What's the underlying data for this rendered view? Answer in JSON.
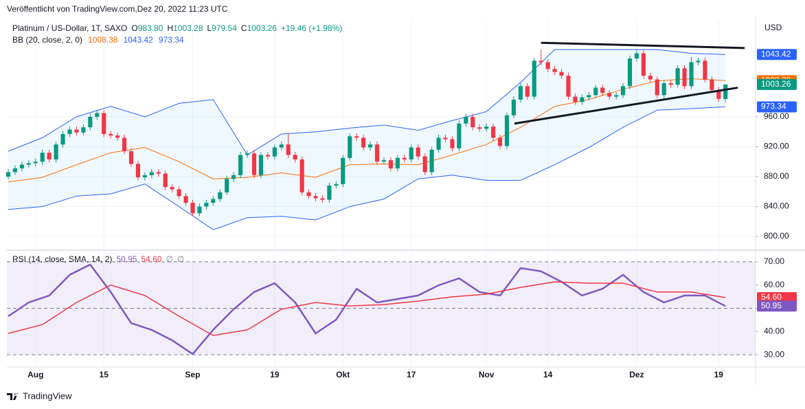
{
  "header": "Veröffentlicht von TradingView.com,Dez 20, 2022 11:23 UTC",
  "footer": "TradingView",
  "chart_data": [
    {
      "type": "candlestick",
      "title": "Platinum / US-Dollar, 1T, SAXO",
      "legend_fields": [
        {
          "label": "O",
          "value": "983.80"
        },
        {
          "label": "H",
          "value": "1003.28"
        },
        {
          "label": "L",
          "value": "979.54"
        },
        {
          "label": "C",
          "value": "1003.26"
        }
      ],
      "change": "+19.46 (+1.98%)",
      "unit": "USD",
      "up_color": "#089981",
      "down_color": "#f23645",
      "xlim": [
        -0.2,
        109.4
      ],
      "xticks": [
        {
          "value": 4,
          "label": "Aug"
        },
        {
          "value": 14,
          "label": "15"
        },
        {
          "value": 27,
          "label": "Sep"
        },
        {
          "value": 39,
          "label": "19"
        },
        {
          "value": 49,
          "label": "Okt"
        },
        {
          "value": 59,
          "label": "17"
        },
        {
          "value": 70,
          "label": "Nov"
        },
        {
          "value": 79,
          "label": "14"
        },
        {
          "value": 92,
          "label": "Dez"
        },
        {
          "value": 104,
          "label": "19"
        }
      ],
      "ylim": [
        783.4,
        1088.7
      ],
      "yticks": [
        {
          "value": 800,
          "label": "800.00"
        },
        {
          "value": 840,
          "label": "840.00"
        },
        {
          "value": 880,
          "label": "880.00"
        },
        {
          "value": 920,
          "label": "920.00"
        },
        {
          "value": 960,
          "label": "960.00"
        }
      ],
      "grid": true,
      "candles": [
        [
          880,
          890,
          876,
          886
        ],
        [
          886,
          895,
          882,
          891
        ],
        [
          891,
          900,
          887,
          896
        ],
        [
          896,
          902,
          892,
          898
        ],
        [
          898,
          904,
          894,
          900
        ],
        [
          900,
          916,
          896,
          912
        ],
        [
          912,
          916,
          899,
          903
        ],
        [
          903,
          927,
          899,
          923
        ],
        [
          923,
          941,
          919,
          937
        ],
        [
          937,
          947,
          933,
          943
        ],
        [
          943,
          947,
          935,
          939
        ],
        [
          939,
          950,
          935,
          946
        ],
        [
          946,
          964,
          942,
          960
        ],
        [
          960,
          969,
          956,
          965
        ],
        [
          965,
          969,
          933,
          937
        ],
        [
          937,
          941,
          931,
          935
        ],
        [
          935,
          939,
          928,
          932
        ],
        [
          932,
          936,
          910,
          914
        ],
        [
          914,
          918,
          893,
          897
        ],
        [
          897,
          901,
          875,
          879
        ],
        [
          879,
          886,
          875,
          882
        ],
        [
          882,
          890,
          878,
          886
        ],
        [
          886,
          890,
          880,
          884
        ],
        [
          884,
          888,
          862,
          866
        ],
        [
          866,
          870,
          859,
          863
        ],
        [
          863,
          867,
          850,
          854
        ],
        [
          854,
          858,
          841,
          845
        ],
        [
          845,
          849,
          827,
          831
        ],
        [
          831,
          844,
          827,
          840
        ],
        [
          840,
          849,
          836,
          845
        ],
        [
          845,
          854,
          841,
          850
        ],
        [
          850,
          863,
          846,
          859
        ],
        [
          859,
          881,
          855,
          877
        ],
        [
          877,
          886,
          873,
          882
        ],
        [
          882,
          913,
          878,
          909
        ],
        [
          909,
          915,
          905,
          911
        ],
        [
          911,
          915,
          878,
          882
        ],
        [
          882,
          913,
          878,
          909
        ],
        [
          909,
          913,
          903,
          907
        ],
        [
          907,
          923,
          903,
          919
        ],
        [
          919,
          927,
          915,
          923
        ],
        [
          923,
          938,
          905,
          909
        ],
        [
          909,
          913,
          899,
          903
        ],
        [
          903,
          907,
          855,
          859
        ],
        [
          859,
          863,
          850,
          854
        ],
        [
          854,
          858,
          847,
          851
        ],
        [
          851,
          855,
          845,
          849
        ],
        [
          849,
          872,
          845,
          868
        ],
        [
          868,
          874,
          864,
          870
        ],
        [
          870,
          909,
          866,
          905
        ],
        [
          905,
          938,
          901,
          934
        ],
        [
          934,
          938,
          928,
          932
        ],
        [
          932,
          936,
          915,
          919
        ],
        [
          919,
          927,
          915,
          923
        ],
        [
          923,
          927,
          896,
          900
        ],
        [
          900,
          906,
          896,
          902
        ],
        [
          902,
          906,
          887,
          891
        ],
        [
          891,
          909,
          887,
          905
        ],
        [
          905,
          909,
          899,
          903
        ],
        [
          903,
          923,
          899,
          919
        ],
        [
          919,
          923,
          903,
          907
        ],
        [
          907,
          911,
          882,
          886
        ],
        [
          886,
          920,
          882,
          916
        ],
        [
          916,
          936,
          912,
          932
        ],
        [
          932,
          936,
          926,
          930
        ],
        [
          930,
          934,
          914,
          918
        ],
        [
          918,
          955,
          914,
          951
        ],
        [
          951,
          964,
          947,
          960
        ],
        [
          960,
          964,
          942,
          946
        ],
        [
          946,
          950,
          940,
          944
        ],
        [
          944,
          951,
          940,
          947
        ],
        [
          947,
          951,
          928,
          932
        ],
        [
          932,
          936,
          917,
          921
        ],
        [
          921,
          966,
          917,
          962
        ],
        [
          962,
          987,
          958,
          983
        ],
        [
          983,
          1005,
          979,
          1001
        ],
        [
          1001,
          1005,
          983,
          987
        ],
        [
          987,
          1039,
          983,
          1035
        ],
        [
          1035,
          1050,
          1029,
          1033
        ],
        [
          1033,
          1037,
          1020,
          1024
        ],
        [
          1024,
          1028,
          1016,
          1020
        ],
        [
          1020,
          1024,
          1011,
          1015
        ],
        [
          1015,
          1019,
          983,
          987
        ],
        [
          987,
          991,
          976,
          980
        ],
        [
          980,
          990,
          976,
          986
        ],
        [
          986,
          993,
          982,
          989
        ],
        [
          989,
          1003,
          985,
          999
        ],
        [
          999,
          1003,
          988,
          992
        ],
        [
          992,
          996,
          983,
          987
        ],
        [
          987,
          993,
          983,
          989
        ],
        [
          989,
          1005,
          985,
          1001
        ],
        [
          1001,
          1042,
          997,
          1038
        ],
        [
          1038,
          1050,
          1034,
          1045
        ],
        [
          1045,
          1049,
          1011,
          1015
        ],
        [
          1015,
          1019,
          1006,
          1010
        ],
        [
          1010,
          1014,
          985,
          989
        ],
        [
          989,
          1009,
          985,
          1005
        ],
        [
          1005,
          1009,
          999,
          1003
        ],
        [
          1003,
          1029,
          999,
          1025
        ],
        [
          1025,
          1029,
          997,
          1001
        ],
        [
          1001,
          1040,
          997,
          1033
        ],
        [
          1033,
          1039,
          1029,
          1035
        ],
        [
          1035,
          1039,
          1006,
          1010
        ],
        [
          1010,
          1014,
          992,
          996
        ],
        [
          996,
          1000,
          980,
          984
        ],
        [
          983.8,
          1003.28,
          979.54,
          1003.26
        ]
      ],
      "bb": {
        "name": "BB (20, close, 2, 0)",
        "legend_values": [
          "1008.38",
          "1043.42",
          "973.34"
        ],
        "fill": "rgba(33,150,243,0.07)",
        "x": [
          0,
          5,
          10,
          15,
          20,
          25,
          30,
          35,
          40,
          45,
          50,
          55,
          60,
          65,
          70,
          75,
          80,
          85,
          90,
          95,
          100,
          105
        ],
        "lines": [
          {
            "color": "#ff6d00",
            "values": [
              873,
              879,
              896,
              912,
              919,
              900,
              877,
              879,
              885,
              879,
              896,
              897,
              896,
              909,
              923,
              946,
              974,
              983,
              997,
              1008,
              1011,
              1008.38
            ]
          },
          {
            "color": "#2962ff",
            "values": [
              914,
              932,
              960,
              974,
              960,
              978,
              983,
              909,
              937,
              940,
              945,
              949,
              942,
              955,
              967,
              1006,
              1050,
              1050,
              1050,
              1050,
              1045,
              1043.42
            ]
          },
          {
            "color": "#2962ff",
            "values": [
              836,
              840,
              854,
              857,
              870,
              840,
              809,
              825,
              827,
              822,
              840,
              850,
              877,
              882,
              875,
              875,
              896,
              919,
              946,
              969,
              971,
              973.34
            ]
          }
        ]
      },
      "trendlines": [
        {
          "color": "#131722",
          "x": [
            78,
            107.8
          ],
          "y": [
            1059,
            1052
          ]
        },
        {
          "color": "#131722",
          "x": [
            74.1,
            106.8
          ],
          "y": [
            951,
            999
          ]
        }
      ],
      "badges": [
        {
          "value": 1043.42,
          "label": "1043.42",
          "color": "#2962ff"
        },
        {
          "value": 1008.38,
          "label": "1008.38",
          "color": "#ff6d00"
        },
        {
          "value": 1003.26,
          "label": "1003.26",
          "color": "#089981"
        },
        {
          "value": 973.34,
          "label": "973.34",
          "color": "#2962ff"
        }
      ]
    },
    {
      "type": "line",
      "title": "RSI (14, close, SMA, 14, 2)",
      "legend_values": [
        "50.95",
        "54.60"
      ],
      "legend_extra": [
        "∅",
        "∅"
      ],
      "xlim": [
        -0.2,
        109.4
      ],
      "ylim": [
        25.3,
        74.4
      ],
      "yticks": [
        {
          "value": 30,
          "label": "30.00"
        },
        {
          "value": 40,
          "label": "40.00"
        },
        {
          "value": 50,
          "label": "50.00"
        },
        {
          "value": 60,
          "label": "60.00"
        },
        {
          "value": 70,
          "label": "70.00"
        }
      ],
      "band": [
        30,
        70
      ],
      "band_color": "rgba(126,87,194,0.1)",
      "dashed_levels": [
        30,
        50,
        70
      ],
      "series": [
        {
          "color": "#7e57c2",
          "x": [
            0,
            3,
            6,
            9,
            12,
            15,
            18,
            21,
            24,
            27,
            30,
            33,
            36,
            39,
            42,
            45,
            48,
            51,
            54,
            57,
            60,
            63,
            66,
            69,
            72,
            75,
            78,
            81,
            84,
            87,
            90,
            93,
            96,
            99,
            102,
            105
          ],
          "values": [
            46.6,
            52.5,
            55.5,
            64.4,
            68.8,
            57,
            43.6,
            40.7,
            36.2,
            30.3,
            40.7,
            49.6,
            57,
            60.8,
            52.5,
            39.2,
            45.1,
            58.4,
            52.5,
            54,
            55.5,
            59.9,
            62.9,
            57,
            55.5,
            67.3,
            65.9,
            61.4,
            55.5,
            58.4,
            64.4,
            57,
            52.5,
            55.5,
            55.5,
            50.95
          ]
        },
        {
          "color": "#f23645",
          "x": [
            0,
            5,
            10,
            15,
            20,
            25,
            30,
            35,
            40,
            45,
            50,
            55,
            60,
            65,
            70,
            75,
            80,
            85,
            90,
            95,
            100,
            105
          ],
          "values": [
            39.2,
            43,
            52.5,
            60,
            55.5,
            46.6,
            38.3,
            40.7,
            49.6,
            52.5,
            51,
            51.6,
            53.1,
            54.9,
            56.1,
            59,
            61.4,
            60.8,
            60.8,
            57,
            57,
            54.6
          ]
        }
      ],
      "badges": [
        {
          "value": 54.6,
          "label": "54.60",
          "color": "#f23645"
        },
        {
          "value": 50.95,
          "label": "50.95",
          "color": "#7e57c2"
        }
      ]
    }
  ]
}
